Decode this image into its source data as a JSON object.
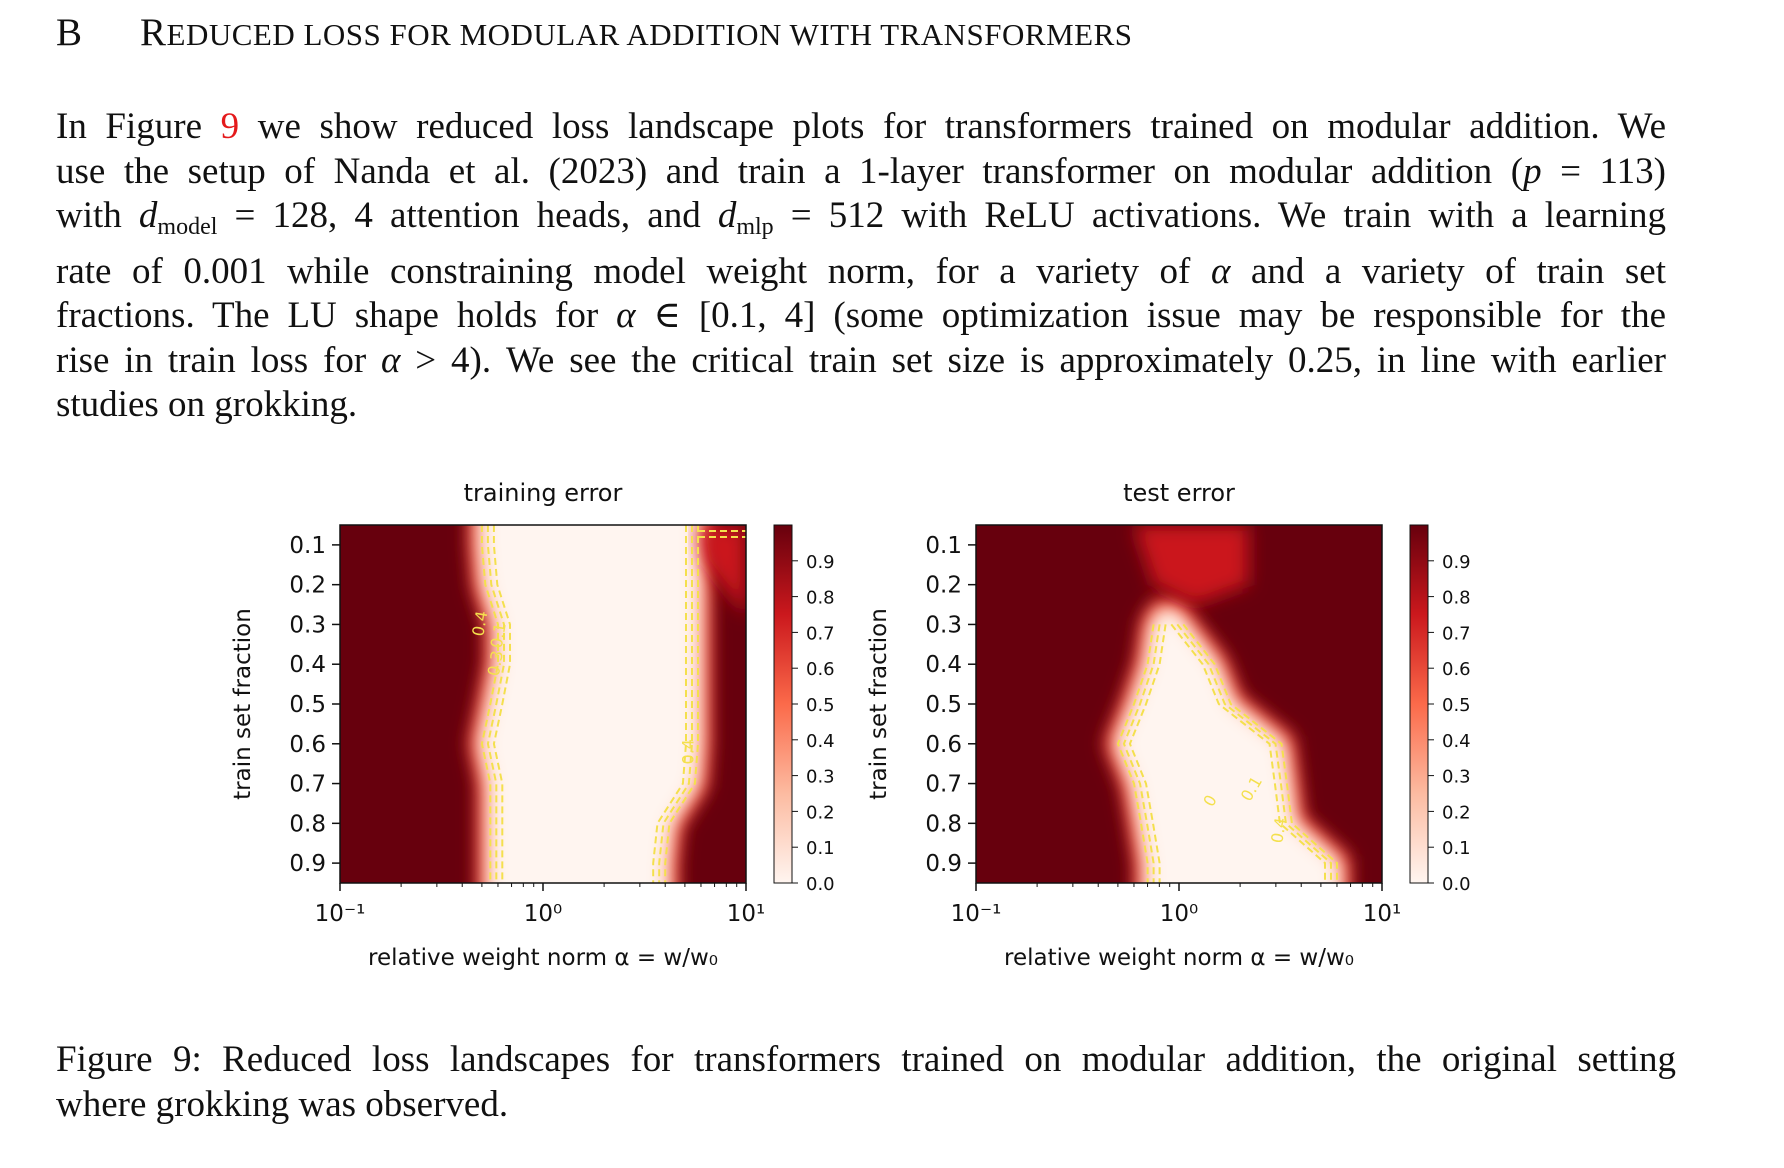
{
  "section": {
    "number": "B",
    "title_first": "R",
    "title_rest": "EDUCED LOSS FOR MODULAR ADDITION WITH TRANSFORMERS"
  },
  "paragraph": {
    "l1_a": "In Figure ",
    "l1_ref": "9",
    "l1_b": " we show reduced loss landscape plots for transformers trained on modular addition. We",
    "l2_a": "use the setup of Nanda et al. (2023) and train a 1-layer transformer on modular addition (",
    "l2_p": "p",
    "l2_b": " = 113)",
    "l3_a": "with ",
    "l3_d1": "d",
    "l3_sub1": "model",
    "l3_b": " = 128, 4 attention heads, and ",
    "l3_d2": "d",
    "l3_sub2": "mlp",
    "l3_c": " = 512 with ReLU activations. We train with a learning",
    "l4_a": "rate of 0.001 while constraining model weight norm, for a variety of ",
    "l4_alpha": "α",
    "l4_b": " and a variety of train set",
    "l5_a": "fractions. The LU shape holds for ",
    "l5_alpha": "α",
    "l5_b": " ∈ [0.1, 4] (some optimization issue may be responsible for the",
    "l6_a": "rise in train loss for ",
    "l6_alpha": "α",
    "l6_b": " > 4). We see the critical train set size is approximately 0.25, in line with earlier",
    "l7": "studies on grokking."
  },
  "chart_data": [
    {
      "type": "heatmap",
      "title": "training error",
      "xlabel": "relative weight norm α = w/w₀",
      "ylabel": "train set fraction",
      "x_scale": "log",
      "xlim": [
        0.1,
        10
      ],
      "x_ticks": [
        "10⁻¹",
        "10⁰",
        "10¹"
      ],
      "ylim": [
        0.05,
        0.95
      ],
      "y_ticks": [
        "0.1",
        "0.2",
        "0.3",
        "0.4",
        "0.5",
        "0.6",
        "0.7",
        "0.8",
        "0.9"
      ],
      "colormap": "Reds",
      "colorbar_range": [
        0.0,
        1.0
      ],
      "colorbar_ticks": [
        "0.0",
        "0.1",
        "0.2",
        "0.3",
        "0.4",
        "0.5",
        "0.6",
        "0.7",
        "0.8",
        "0.9"
      ],
      "contour_levels": [
        "0.4",
        "0.3",
        "0.1",
        "0.4"
      ],
      "left_boundary_alpha": [
        0.5,
        0.52,
        0.6,
        0.6,
        0.55,
        0.5,
        0.55,
        0.55,
        0.55
      ],
      "right_boundary_alpha": [
        5.8,
        5.8,
        5.8,
        5.8,
        5.8,
        5.8,
        5.6,
        4.2,
        4.0
      ]
    },
    {
      "type": "heatmap",
      "title": "test error",
      "xlabel": "relative weight norm α = w/w₀",
      "ylabel": "train set fraction",
      "x_scale": "log",
      "xlim": [
        0.1,
        10
      ],
      "x_ticks": [
        "10⁻¹",
        "10⁰",
        "10¹"
      ],
      "ylim": [
        0.05,
        0.95
      ],
      "y_ticks": [
        "0.1",
        "0.2",
        "0.3",
        "0.4",
        "0.5",
        "0.6",
        "0.7",
        "0.8",
        "0.9"
      ],
      "colormap": "Reds",
      "colorbar_range": [
        0.0,
        1.0
      ],
      "colorbar_ticks": [
        "0.0",
        "0.1",
        "0.2",
        "0.3",
        "0.4",
        "0.5",
        "0.6",
        "0.7",
        "0.8",
        "0.9"
      ],
      "contour_levels": [
        "0",
        "0.1",
        "0.4"
      ],
      "left_boundary_alpha": [
        null,
        null,
        0.75,
        0.7,
        0.6,
        0.5,
        0.6,
        0.65,
        0.7
      ],
      "right_boundary_alpha": [
        null,
        null,
        1.05,
        1.5,
        1.8,
        3.2,
        3.4,
        3.6,
        6.0
      ]
    }
  ],
  "caption": {
    "l1": "Figure 9: Reduced loss landscapes for transformers trained on modular addition, the original setting",
    "l2": "where grokking was observed."
  },
  "colors": {
    "ref": "#e41a1c",
    "contour": "#f4e04d",
    "dark": "#67000d",
    "light": "#fff5f0"
  }
}
